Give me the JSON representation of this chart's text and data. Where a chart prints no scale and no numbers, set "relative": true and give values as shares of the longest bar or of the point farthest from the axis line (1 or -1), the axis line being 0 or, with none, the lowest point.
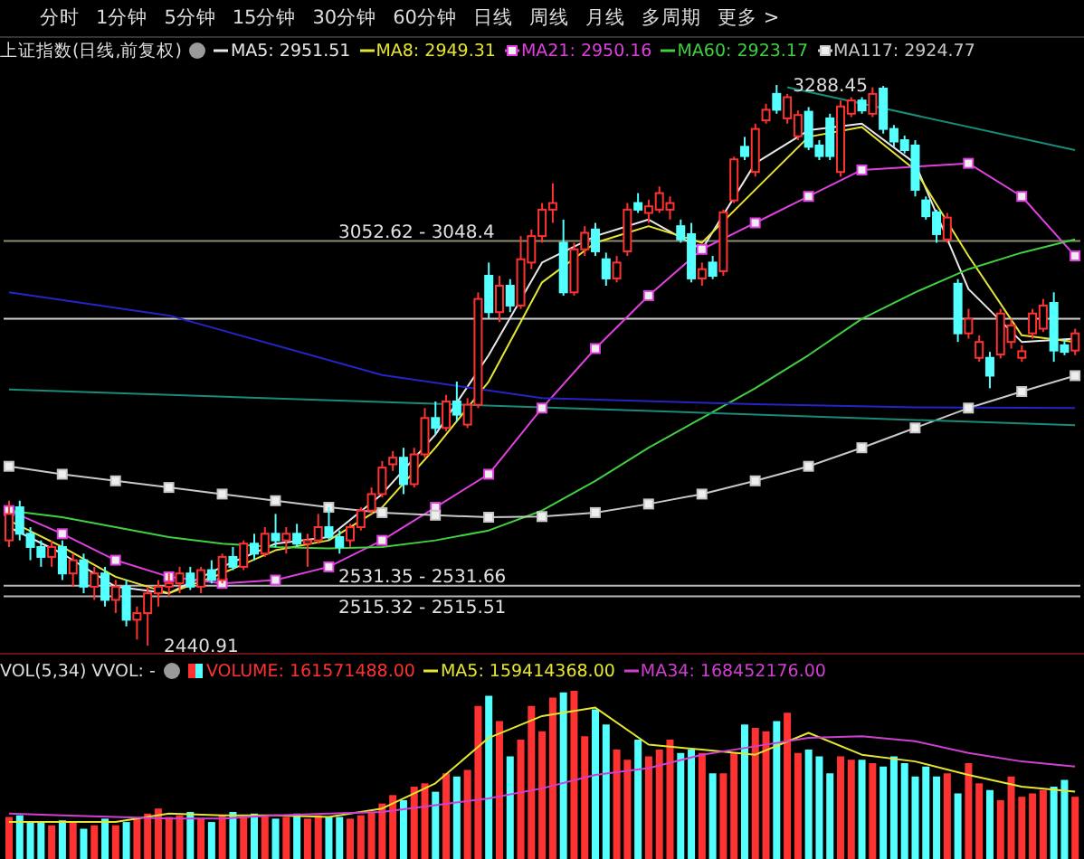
{
  "chart_data": [
    {
      "type": "candlestick",
      "title": "上证指数(日线,前复权)",
      "legend": "top",
      "grid": false,
      "annotations": [
        "分时",
        "1分钟",
        "5分钟",
        "15分钟",
        "30分钟",
        "60分钟",
        "日线",
        "周线",
        "月线",
        "多周期",
        "更多 >",
        "3288.45",
        "2440.91"
      ],
      "categories": [
        null,
        null,
        null,
        null,
        null,
        null,
        null,
        null,
        null,
        null,
        null,
        null,
        null,
        null,
        null,
        null,
        null,
        null,
        null,
        null,
        null,
        null,
        null,
        null,
        null,
        null,
        null,
        null,
        null,
        null,
        null,
        null,
        null,
        null,
        null,
        null,
        null,
        null,
        null,
        null,
        null,
        null,
        null,
        null,
        null,
        null,
        null,
        null,
        null,
        null,
        null,
        null,
        null,
        null,
        null,
        null,
        null,
        null,
        null,
        null,
        null,
        null,
        null,
        null,
        null,
        null,
        null,
        null,
        null,
        null,
        null,
        null,
        null,
        null,
        null,
        null,
        null,
        null,
        null,
        null,
        null,
        null,
        null,
        null,
        null,
        null,
        null,
        null,
        null,
        null,
        null,
        null,
        null,
        null,
        null,
        null,
        null,
        null,
        null,
        null,
        null
      ],
      "ohlc": [
        [
          2600,
          2660,
          2590,
          2640
        ],
        [
          2650,
          2660,
          2600,
          2610
        ],
        [
          2610,
          2620,
          2570,
          2590
        ],
        [
          2590,
          2600,
          2560,
          2575
        ],
        [
          2575,
          2600,
          2560,
          2590
        ],
        [
          2590,
          2600,
          2540,
          2550
        ],
        [
          2550,
          2580,
          2530,
          2570
        ],
        [
          2570,
          2580,
          2520,
          2530
        ],
        [
          2530,
          2560,
          2510,
          2550
        ],
        [
          2550,
          2560,
          2500,
          2510
        ],
        [
          2510,
          2540,
          2490,
          2530
        ],
        [
          2530,
          2540,
          2470,
          2480
        ],
        [
          2480,
          2500,
          2450,
          2490
        ],
        [
          2490,
          2530,
          2440.91,
          2520
        ],
        [
          2520,
          2540,
          2500,
          2530
        ],
        [
          2530,
          2550,
          2515,
          2535
        ],
        [
          2535,
          2560,
          2520,
          2550
        ],
        [
          2550,
          2560,
          2525,
          2530
        ],
        [
          2530,
          2560,
          2520,
          2555
        ],
        [
          2555,
          2570,
          2535,
          2540
        ],
        [
          2540,
          2580,
          2535,
          2575
        ],
        [
          2575,
          2590,
          2555,
          2560
        ],
        [
          2560,
          2600,
          2555,
          2595
        ],
        [
          2595,
          2610,
          2570,
          2580
        ],
        [
          2580,
          2620,
          2575,
          2610
        ],
        [
          2610,
          2640,
          2590,
          2600
        ],
        [
          2600,
          2620,
          2580,
          2610
        ],
        [
          2610,
          2625,
          2590,
          2595
        ],
        [
          2595,
          2610,
          2560,
          2600
        ],
        [
          2600,
          2640,
          2595,
          2620
        ],
        [
          2620,
          2650,
          2600,
          2605
        ],
        [
          2605,
          2615,
          2580,
          2590
        ],
        [
          2600,
          2625,
          2590,
          2620
        ],
        [
          2620,
          2650,
          2615,
          2645
        ],
        [
          2645,
          2680,
          2640,
          2670
        ],
        [
          2670,
          2720,
          2665,
          2710
        ],
        [
          2715,
          2735,
          2705,
          2725
        ],
        [
          2725,
          2740,
          2670,
          2685
        ],
        [
          2685,
          2740,
          2680,
          2730
        ],
        [
          2730,
          2800,
          2725,
          2785
        ],
        [
          2785,
          2810,
          2760,
          2770
        ],
        [
          2770,
          2820,
          2765,
          2810
        ],
        [
          2810,
          2840,
          2780,
          2790
        ],
        [
          2775,
          2815,
          2770,
          2805
        ],
        [
          2805,
          2975,
          2800,
          2965
        ],
        [
          3000,
          3020,
          2935,
          2945
        ],
        [
          2945,
          3000,
          2930,
          2985
        ],
        [
          2985,
          2995,
          2945,
          2955
        ],
        [
          2955,
          3060,
          2950,
          3025
        ],
        [
          3020,
          3070,
          3010,
          3060
        ],
        [
          3060,
          3110,
          3050,
          3100
        ],
        [
          3100,
          3140,
          3080,
          3110
        ],
        [
          3050,
          3085,
          2970,
          2975
        ],
        [
          2975,
          3050,
          2970,
          3040
        ],
        [
          3040,
          3075,
          3030,
          3065
        ],
        [
          3070,
          3080,
          3030,
          3037
        ],
        [
          3025,
          3035,
          2985,
          2996
        ],
        [
          2996,
          3030,
          2990,
          3020
        ],
        [
          3037,
          3110,
          3030,
          3100
        ],
        [
          3110,
          3125,
          3095,
          3100
        ],
        [
          3095,
          3115,
          3080,
          3105
        ],
        [
          3100,
          3135,
          3095,
          3125
        ],
        [
          3100,
          3120,
          3085,
          3110
        ],
        [
          3075,
          3085,
          3050,
          3055
        ],
        [
          3063,
          3080,
          2990,
          2996
        ],
        [
          2996,
          3020,
          2985,
          3010
        ],
        [
          3020,
          3030,
          2995,
          3000
        ],
        [
          3007,
          3100,
          3000,
          3096
        ],
        [
          3114,
          3180,
          3110,
          3176
        ],
        [
          3195,
          3210,
          3175,
          3181
        ],
        [
          3157,
          3230,
          3150,
          3222
        ],
        [
          3235,
          3260,
          3230,
          3251
        ],
        [
          3275,
          3288.45,
          3245,
          3251
        ],
        [
          3238,
          3275,
          3230,
          3270
        ],
        [
          3211,
          3250,
          3205,
          3243
        ],
        [
          3248,
          3255,
          3190,
          3195
        ],
        [
          3197,
          3205,
          3175,
          3181
        ],
        [
          3238,
          3245,
          3175,
          3181
        ],
        [
          3157,
          3265,
          3150,
          3256
        ],
        [
          3245,
          3270,
          3240,
          3265
        ],
        [
          3265,
          3270,
          3245,
          3250
        ],
        [
          3245,
          3285,
          3240,
          3275
        ],
        [
          3283,
          3287,
          3215,
          3222
        ],
        [
          3222,
          3228,
          3195,
          3203
        ],
        [
          3205,
          3212,
          3185,
          3190
        ],
        [
          3197,
          3205,
          3120,
          3130
        ],
        [
          3114,
          3120,
          3085,
          3090
        ],
        [
          3096,
          3100,
          3050,
          3063
        ],
        [
          3055,
          3095,
          3050,
          3088
        ],
        [
          2988,
          2995,
          2900,
          2913
        ],
        [
          2913,
          2950,
          2905,
          2935
        ],
        [
          2876,
          2910,
          2870,
          2900
        ],
        [
          2876,
          2885,
          2830,
          2849
        ],
        [
          2881,
          2950,
          2875,
          2943
        ],
        [
          2900,
          2935,
          2890,
          2925
        ],
        [
          2876,
          2895,
          2870,
          2886
        ],
        [
          2913,
          2950,
          2905,
          2943
        ],
        [
          2920,
          2965,
          2915,
          2955
        ],
        [
          2959,
          2975,
          2870,
          2887
        ],
        [
          2895,
          2905,
          2880,
          2885
        ],
        [
          2887,
          2920,
          2880,
          2913
        ]
      ],
      "colors": [
        "#ff3232",
        "#54ffff",
        "#54ffff",
        "#54ffff",
        "#ff3232",
        "#54ffff",
        "#ff3232",
        "#54ffff",
        "#ff3232",
        "#54ffff",
        "#ff3232",
        "#54ffff",
        "#ff3232",
        "#ff3232",
        "#ff3232",
        "#ff3232",
        "#ff3232",
        "#54ffff",
        "#ff3232",
        "#54ffff",
        "#ff3232",
        "#54ffff",
        "#ff3232",
        "#54ffff",
        "#ff3232",
        "#54ffff",
        "#ff3232",
        "#54ffff",
        "#ff3232",
        "#ff3232",
        "#54ffff",
        "#54ffff",
        "#ff3232",
        "#ff3232",
        "#ff3232",
        "#ff3232",
        "#ff3232",
        "#54ffff",
        "#ff3232",
        "#ff3232",
        "#54ffff",
        "#ff3232",
        "#54ffff",
        "#ff3232",
        "#ff3232",
        "#54ffff",
        "#ff3232",
        "#54ffff",
        "#ff3232",
        "#ff3232",
        "#ff3232",
        "#ff3232",
        "#54ffff",
        "#ff3232",
        "#ff3232",
        "#54ffff",
        "#54ffff",
        "#ff3232",
        "#ff3232",
        "#54ffff",
        "#ff3232",
        "#ff3232",
        "#ff3232",
        "#54ffff",
        "#54ffff",
        "#ff3232",
        "#54ffff",
        "#ff3232",
        "#ff3232",
        "#54ffff",
        "#ff3232",
        "#ff3232",
        "#54ffff",
        "#ff3232",
        "#ff3232",
        "#54ffff",
        "#54ffff",
        "#54ffff",
        "#ff3232",
        "#ff3232",
        "#54ffff",
        "#ff3232",
        "#54ffff",
        "#54ffff",
        "#54ffff",
        "#54ffff",
        "#54ffff",
        "#54ffff",
        "#ff3232",
        "#54ffff",
        "#ff3232",
        "#ff3232",
        "#54ffff",
        "#ff3232",
        "#ff3232",
        "#ff3232",
        "#ff3232",
        "#ff3232",
        "#54ffff",
        "#54ffff",
        "#ff3232"
      ],
      "series": [
        {
          "type": "line",
          "name": "MA5: 2951.51",
          "color": "#e8e8e8",
          "marker": "none",
          "values": [
            2620,
            null,
            null,
            null,
            null,
            2580,
            null,
            null,
            null,
            null,
            2530,
            null,
            null,
            null,
            null,
            2520,
            null,
            null,
            null,
            null,
            2560,
            null,
            null,
            null,
            null,
            2595,
            null,
            null,
            null,
            null,
            2605,
            null,
            null,
            null,
            null,
            2670,
            null,
            null,
            null,
            null,
            2760,
            null,
            null,
            null,
            null,
            2880,
            null,
            null,
            null,
            null,
            3020,
            null,
            null,
            null,
            null,
            3060,
            null,
            null,
            null,
            null,
            3085,
            null,
            null,
            null,
            null,
            3040,
            null,
            null,
            null,
            null,
            3170,
            null,
            null,
            null,
            null,
            3220,
            null,
            null,
            null,
            null,
            3230,
            null,
            null,
            null,
            null,
            3170,
            null,
            null,
            null,
            null,
            2980,
            null,
            null,
            null,
            null,
            2900,
            null,
            null,
            null,
            null,
            2905
          ]
        },
        {
          "type": "line",
          "name": "MA8: 2949.31",
          "color": "#e6e632",
          "marker": "none",
          "values": [
            2630,
            null,
            null,
            null,
            null,
            2590,
            null,
            null,
            null,
            null,
            2545,
            null,
            null,
            null,
            null,
            2520,
            null,
            null,
            null,
            null,
            2550,
            null,
            null,
            null,
            null,
            2585,
            null,
            null,
            null,
            null,
            2600,
            null,
            null,
            null,
            null,
            2650,
            null,
            null,
            null,
            null,
            2740,
            null,
            null,
            null,
            null,
            2840,
            null,
            null,
            null,
            null,
            2990,
            null,
            null,
            null,
            null,
            3050,
            null,
            null,
            null,
            null,
            3075,
            null,
            null,
            null,
            null,
            3050,
            null,
            null,
            null,
            null,
            3130,
            null,
            null,
            null,
            null,
            3210,
            null,
            null,
            null,
            null,
            3225,
            null,
            null,
            null,
            null,
            3160,
            null,
            null,
            null,
            null,
            3030,
            null,
            null,
            null,
            null,
            2910,
            null,
            null,
            null,
            null,
            2900
          ]
        },
        {
          "type": "line",
          "name": "MA21: 2950.16",
          "color": "#e040e0",
          "marker": "square",
          "values": [
            2645,
            null,
            null,
            null,
            null,
            2610,
            null,
            null,
            null,
            null,
            2570,
            null,
            null,
            null,
            null,
            2545,
            null,
            null,
            null,
            null,
            2535,
            null,
            null,
            null,
            null,
            2540,
            null,
            null,
            null,
            null,
            2560,
            null,
            null,
            null,
            null,
            2600,
            null,
            null,
            null,
            null,
            2650,
            null,
            null,
            null,
            null,
            2700,
            null,
            null,
            null,
            null,
            2800,
            null,
            null,
            null,
            null,
            2890,
            null,
            null,
            null,
            null,
            2970,
            null,
            null,
            null,
            null,
            3040,
            null,
            null,
            null,
            null,
            3080,
            null,
            null,
            null,
            null,
            3120,
            null,
            null,
            null,
            null,
            3160,
            null,
            null,
            null,
            null,
            null,
            null,
            null,
            null,
            null,
            3170,
            null,
            null,
            null,
            null,
            3120,
            null,
            null,
            null,
            null,
            3030
          ]
        },
        {
          "type": "line",
          "name": "MA60: 2923.17",
          "color": "#40d040",
          "marker": "none",
          "values": [
            2645,
            null,
            null,
            null,
            null,
            2635,
            null,
            null,
            null,
            null,
            2620,
            null,
            null,
            null,
            null,
            2605,
            null,
            null,
            null,
            null,
            2595,
            null,
            null,
            null,
            null,
            2590,
            null,
            null,
            null,
            null,
            2588,
            null,
            null,
            null,
            null,
            2590,
            null,
            null,
            null,
            null,
            2600,
            null,
            null,
            null,
            null,
            2615,
            null,
            null,
            null,
            null,
            2645,
            null,
            null,
            null,
            null,
            2690,
            null,
            null,
            null,
            null,
            2740,
            null,
            null,
            null,
            null,
            2785,
            null,
            null,
            null,
            null,
            2830,
            null,
            null,
            null,
            null,
            2880,
            null,
            null,
            null,
            null,
            2935,
            null,
            null,
            null,
            null,
            2975,
            null,
            null,
            null,
            null,
            3010,
            null,
            null,
            null,
            null,
            3035,
            null,
            null,
            null,
            null,
            3055
          ]
        },
        {
          "type": "line",
          "name": "MA117: 2924.77",
          "color": "#c8c8c8",
          "marker": "square",
          "values": [
            2712,
            null,
            null,
            null,
            null,
            2700,
            null,
            null,
            null,
            null,
            2690,
            null,
            null,
            null,
            null,
            2680,
            null,
            null,
            null,
            null,
            2670,
            null,
            null,
            null,
            null,
            2660,
            null,
            null,
            null,
            null,
            2650,
            null,
            null,
            null,
            null,
            2642,
            null,
            null,
            null,
            null,
            2638,
            null,
            null,
            null,
            null,
            2635,
            null,
            null,
            null,
            null,
            2636,
            null,
            null,
            null,
            null,
            2642,
            null,
            null,
            null,
            null,
            2655,
            null,
            null,
            null,
            null,
            2670,
            null,
            null,
            null,
            null,
            2690,
            null,
            null,
            null,
            null,
            2712,
            null,
            null,
            null,
            null,
            2740,
            null,
            null,
            null,
            null,
            2770,
            null,
            null,
            null,
            null,
            2800,
            null,
            null,
            null,
            null,
            2825,
            null,
            null,
            null,
            null,
            2849
          ]
        },
        {
          "type": "line",
          "color": "#2424c8",
          "marker": "none",
          "values": [
            2975,
            null,
            null,
            null,
            null,
            null,
            null,
            null,
            null,
            null,
            null,
            null,
            null,
            null,
            null,
            2940,
            null,
            null,
            null,
            null,
            null,
            null,
            null,
            null,
            null,
            null,
            null,
            null,
            null,
            null,
            null,
            null,
            null,
            null,
            null,
            2850,
            null,
            null,
            null,
            null,
            null,
            null,
            null,
            null,
            null,
            null,
            null,
            null,
            null,
            null,
            2815,
            null,
            null,
            null,
            null,
            null,
            null,
            null,
            null,
            null,
            null,
            null,
            null,
            null,
            null,
            null,
            null,
            null,
            null,
            null,
            2806,
            null,
            null,
            null,
            null,
            null,
            null,
            null,
            null,
            null,
            null,
            null,
            null,
            null,
            null,
            2801,
            null,
            null,
            null,
            null,
            null,
            null,
            null,
            null,
            null,
            null,
            null,
            null,
            null,
            null,
            2800
          ]
        },
        {
          "type": "line",
          "color": "#1a8a7a",
          "marker": "none",
          "values": [
            2828,
            null,
            null,
            null,
            null,
            null,
            null,
            null,
            null,
            null,
            null,
            null,
            null,
            null,
            null,
            null,
            null,
            null,
            null,
            null,
            null,
            null,
            null,
            null,
            null,
            null,
            null,
            null,
            null,
            null,
            null,
            null,
            null,
            null,
            null,
            null,
            null,
            null,
            null,
            null,
            null,
            null,
            null,
            null,
            null,
            null,
            null,
            null,
            null,
            null,
            null,
            null,
            null,
            null,
            null,
            null,
            null,
            null,
            null,
            null,
            null,
            null,
            null,
            null,
            null,
            null,
            null,
            null,
            null,
            null,
            null,
            null,
            null,
            null,
            null,
            null,
            null,
            null,
            null,
            null,
            null,
            null,
            null,
            null,
            null,
            null,
            null,
            null,
            null,
            null,
            null,
            null,
            null,
            null,
            null,
            null,
            null,
            null,
            null,
            null,
            2774
          ]
        },
        {
          "type": "line",
          "color": "#1a8a7a",
          "marker": "none",
          "values": [
            null,
            null,
            null,
            null,
            null,
            null,
            null,
            null,
            null,
            null,
            null,
            null,
            null,
            null,
            null,
            null,
            null,
            null,
            null,
            null,
            null,
            null,
            null,
            null,
            null,
            null,
            null,
            null,
            null,
            null,
            null,
            null,
            null,
            null,
            null,
            null,
            null,
            null,
            null,
            null,
            null,
            null,
            null,
            null,
            null,
            null,
            null,
            null,
            null,
            null,
            null,
            null,
            null,
            null,
            null,
            null,
            null,
            null,
            null,
            null,
            null,
            null,
            null,
            null,
            null,
            null,
            null,
            null,
            null,
            null,
            null,
            null,
            null,
            3285,
            null,
            null,
            null,
            null,
            null,
            null,
            null,
            null,
            null,
            null,
            null,
            null,
            null,
            null,
            null,
            null,
            null,
            null,
            null,
            null,
            null,
            null,
            null,
            null,
            null,
            null,
            3190
          ]
        }
      ],
      "ref_lines": [
        {
          "axis": "y",
          "value": 2935,
          "color": "#d0d0d0"
        },
        {
          "axis": "y",
          "value": 2531.35,
          "label": "2531.35 - 2531.66",
          "color": "#b8b8b8"
        },
        {
          "axis": "y",
          "value": 2515.32,
          "label": "2515.32 - 2515.51",
          "color": "#b8b8b8"
        },
        {
          "axis": "y",
          "value": 3052.62,
          "label": "3052.62 - 3048.4",
          "color": "#8c8c70"
        }
      ]
    },
    {
      "type": "bar",
      "title": "VOL(5,34)  VVOL: -",
      "relative": true,
      "legend": "top",
      "grid": false,
      "categories": [
        null,
        null,
        null,
        null,
        null,
        null,
        null,
        null,
        null,
        null,
        null,
        null,
        null,
        null,
        null,
        null,
        null,
        null,
        null,
        null,
        null,
        null,
        null,
        null,
        null,
        null,
        null,
        null,
        null,
        null,
        null,
        null,
        null,
        null,
        null,
        null,
        null,
        null,
        null,
        null,
        null,
        null,
        null,
        null,
        null,
        null,
        null,
        null,
        null,
        null,
        null,
        null,
        null,
        null,
        null,
        null,
        null,
        null,
        null,
        null,
        null,
        null,
        null,
        null,
        null,
        null,
        null,
        null,
        null,
        null,
        null,
        null,
        null,
        null,
        null,
        null,
        null,
        null,
        null,
        null,
        null,
        null,
        null,
        null,
        null,
        null,
        null,
        null,
        null,
        null,
        null,
        null,
        null,
        null,
        null,
        null,
        null,
        null,
        null,
        null,
        null
      ],
      "series": [
        {
          "type": "bar",
          "name": "VOLUME: 161571488.00",
          "values": [
            0.25,
            0.26,
            0.22,
            0.22,
            0.2,
            0.23,
            0.22,
            0.18,
            0.2,
            0.24,
            0.2,
            0.22,
            0.24,
            0.27,
            0.3,
            0.25,
            0.26,
            0.28,
            0.24,
            0.22,
            0.26,
            0.28,
            0.25,
            0.27,
            0.26,
            0.24,
            0.25,
            0.27,
            0.24,
            0.26,
            0.25,
            0.25,
            0.24,
            0.26,
            0.28,
            0.33,
            0.38,
            0.35,
            0.43,
            0.45,
            0.4,
            0.51,
            0.49,
            0.53,
            0.91,
            0.97,
            0.82,
            0.61,
            0.71,
            0.91,
            0.76,
            0.96,
            0.99,
            1,
            0.73,
            0.89,
            0.8,
            0.65,
            0.59,
            0.71,
            0.61,
            0.65,
            0.71,
            0.63,
            0.65,
            0.63,
            0.51,
            0.51,
            0.63,
            0.8,
            0.78,
            0.76,
            0.82,
            0.87,
            0.63,
            0.65,
            0.61,
            0.51,
            0.61,
            0.59,
            0.59,
            0.57,
            0.55,
            0.61,
            0.57,
            0.49,
            0.55,
            0.49,
            0.51,
            0.39,
            0.57,
            0.45,
            0.41,
            0.35,
            0.49,
            0.37,
            0.39,
            0.41,
            0.43,
            0.47,
            0.37
          ],
          "colors": [
            "#ff3232",
            "#54ffff",
            "#54ffff",
            "#54ffff",
            "#ff3232",
            "#54ffff",
            "#ff3232",
            "#54ffff",
            "#ff3232",
            "#54ffff",
            "#ff3232",
            "#54ffff",
            "#ff3232",
            "#ff3232",
            "#ff3232",
            "#ff3232",
            "#ff3232",
            "#54ffff",
            "#ff3232",
            "#54ffff",
            "#ff3232",
            "#54ffff",
            "#ff3232",
            "#54ffff",
            "#ff3232",
            "#54ffff",
            "#ff3232",
            "#54ffff",
            "#ff3232",
            "#ff3232",
            "#54ffff",
            "#54ffff",
            "#ff3232",
            "#ff3232",
            "#ff3232",
            "#ff3232",
            "#ff3232",
            "#54ffff",
            "#ff3232",
            "#ff3232",
            "#54ffff",
            "#ff3232",
            "#54ffff",
            "#ff3232",
            "#ff3232",
            "#54ffff",
            "#ff3232",
            "#54ffff",
            "#ff3232",
            "#ff3232",
            "#ff3232",
            "#ff3232",
            "#54ffff",
            "#ff3232",
            "#ff3232",
            "#54ffff",
            "#54ffff",
            "#ff3232",
            "#ff3232",
            "#54ffff",
            "#ff3232",
            "#ff3232",
            "#ff3232",
            "#54ffff",
            "#54ffff",
            "#ff3232",
            "#54ffff",
            "#ff3232",
            "#ff3232",
            "#54ffff",
            "#ff3232",
            "#ff3232",
            "#54ffff",
            "#ff3232",
            "#ff3232",
            "#54ffff",
            "#54ffff",
            "#54ffff",
            "#ff3232",
            "#ff3232",
            "#54ffff",
            "#ff3232",
            "#54ffff",
            "#54ffff",
            "#54ffff",
            "#54ffff",
            "#54ffff",
            "#54ffff",
            "#ff3232",
            "#54ffff",
            "#ff3232",
            "#ff3232",
            "#54ffff",
            "#ff3232",
            "#ff3232",
            "#ff3232",
            "#ff3232",
            "#ff3232",
            "#54ffff",
            "#54ffff",
            "#ff3232"
          ]
        },
        {
          "type": "line",
          "name": "MA5: 159414368.00",
          "color": "#e6e632",
          "marker": "none",
          "values": [
            0.22,
            null,
            null,
            null,
            null,
            0.22,
            null,
            null,
            null,
            null,
            0.22,
            null,
            null,
            null,
            null,
            0.27,
            null,
            null,
            null,
            null,
            0.26,
            null,
            null,
            null,
            null,
            0.26,
            null,
            null,
            null,
            null,
            0.25,
            null,
            null,
            null,
            null,
            0.3,
            null,
            null,
            null,
            null,
            0.45,
            null,
            null,
            null,
            null,
            0.72,
            null,
            null,
            null,
            null,
            0.85,
            null,
            null,
            null,
            null,
            0.9,
            null,
            null,
            null,
            null,
            0.68,
            null,
            null,
            null,
            null,
            0.65,
            null,
            null,
            null,
            null,
            0.62,
            null,
            null,
            null,
            null,
            0.75,
            null,
            null,
            null,
            null,
            0.62,
            null,
            null,
            null,
            null,
            0.58,
            null,
            null,
            null,
            null,
            0.5,
            null,
            null,
            null,
            null,
            0.43,
            null,
            null,
            null,
            null,
            0.4
          ]
        },
        {
          "type": "line",
          "name": "MA34: 168452176.00",
          "color": "#d040d0",
          "marker": "none",
          "values": [
            0.27,
            null,
            null,
            null,
            null,
            0.26,
            null,
            null,
            null,
            null,
            0.25,
            null,
            null,
            null,
            null,
            0.24,
            null,
            null,
            null,
            null,
            0.24,
            null,
            null,
            null,
            null,
            0.26,
            null,
            null,
            null,
            null,
            0.27,
            null,
            null,
            null,
            null,
            0.28,
            null,
            null,
            null,
            null,
            0.32,
            null,
            null,
            null,
            null,
            0.36,
            null,
            null,
            null,
            null,
            0.42,
            null,
            null,
            null,
            null,
            0.5,
            null,
            null,
            null,
            null,
            0.54,
            null,
            null,
            null,
            null,
            0.62,
            null,
            null,
            null,
            null,
            0.67,
            null,
            null,
            null,
            null,
            0.72,
            null,
            null,
            null,
            null,
            0.73,
            null,
            null,
            null,
            null,
            0.7,
            null,
            null,
            null,
            null,
            0.63,
            null,
            null,
            null,
            null,
            0.58,
            null,
            null,
            null,
            null,
            0.55
          ]
        }
      ]
    }
  ]
}
